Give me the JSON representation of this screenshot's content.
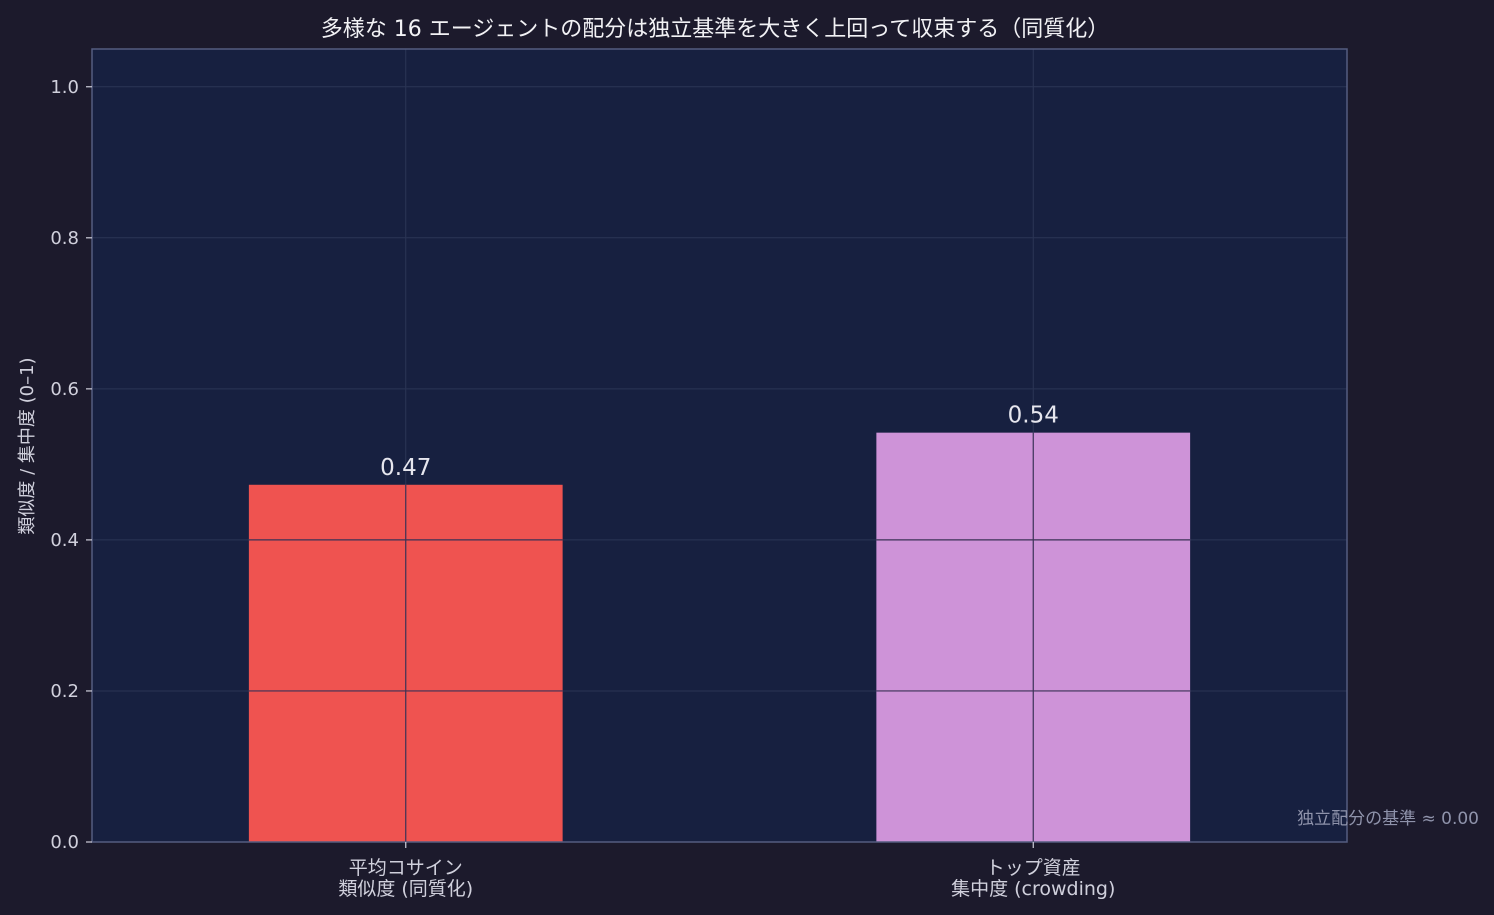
{
  "chart_data": {
    "type": "bar",
    "title": "多様な 16 エージェントの配分は独立基準を大きく上回って収束する（同質化）",
    "ylabel": "類似度 / 集中度 (0–1)",
    "xlabel": "",
    "categories": [
      [
        "平均コサイン",
        "類似度 (同質化)"
      ],
      [
        "トップ資産",
        "集中度 (crowding)"
      ]
    ],
    "values": [
      0.473,
      0.542
    ],
    "value_labels": [
      "0.47",
      "0.54"
    ],
    "bar_colors": [
      "#ef5350",
      "#ce93d8"
    ],
    "ylim": [
      0,
      1.05
    ],
    "yticks": [
      0.0,
      0.2,
      0.4,
      0.6,
      0.8,
      1.0
    ],
    "ytick_labels": [
      "0.0",
      "0.2",
      "0.4",
      "0.6",
      "0.8",
      "1.0"
    ],
    "grid": true,
    "annotation": "独立配分の基準 ≈ 0.00",
    "colors": {
      "figure_bg": "#1c1a2c",
      "plot_bg": "#172040",
      "grid": "#2b3555",
      "axis": "#555c80",
      "text": "#d0d0dc"
    }
  }
}
